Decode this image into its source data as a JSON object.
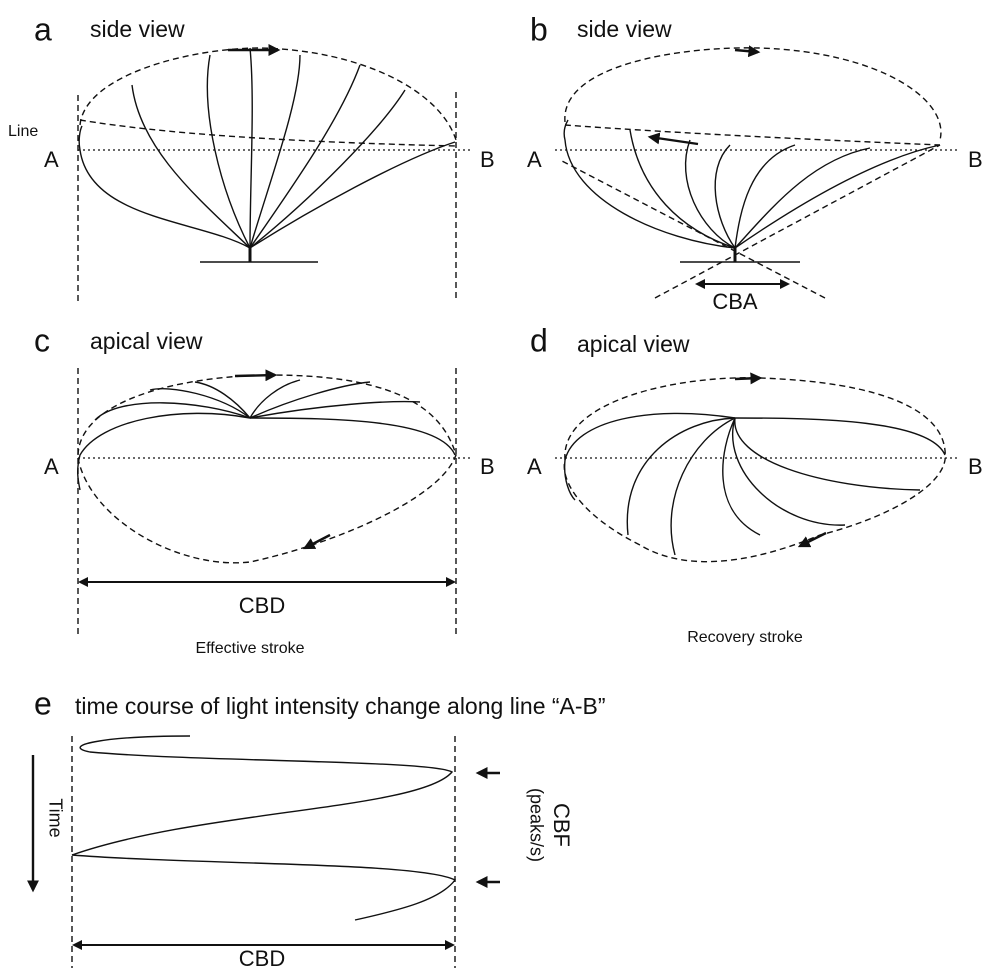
{
  "panels": [
    {
      "letter": "a",
      "title": "side view",
      "line_label": "Line",
      "point_a": "A",
      "point_b": "B"
    },
    {
      "letter": "b",
      "title": "side view",
      "point_a": "A",
      "point_b": "B",
      "angle_label": "CBA"
    },
    {
      "letter": "c",
      "title": "apical view",
      "point_a": "A",
      "point_b": "B",
      "distance_label": "CBD",
      "caption": "Effective stroke"
    },
    {
      "letter": "d",
      "title": "apical view",
      "point_a": "A",
      "point_b": "B",
      "caption": "Recovery stroke"
    },
    {
      "letter": "e",
      "title": "time course of light intensity change along line “A-B”",
      "time_label": "Time",
      "frequency_label": "CBF",
      "frequency_unit": "(peaks/s)",
      "distance_label": "CBD"
    }
  ]
}
